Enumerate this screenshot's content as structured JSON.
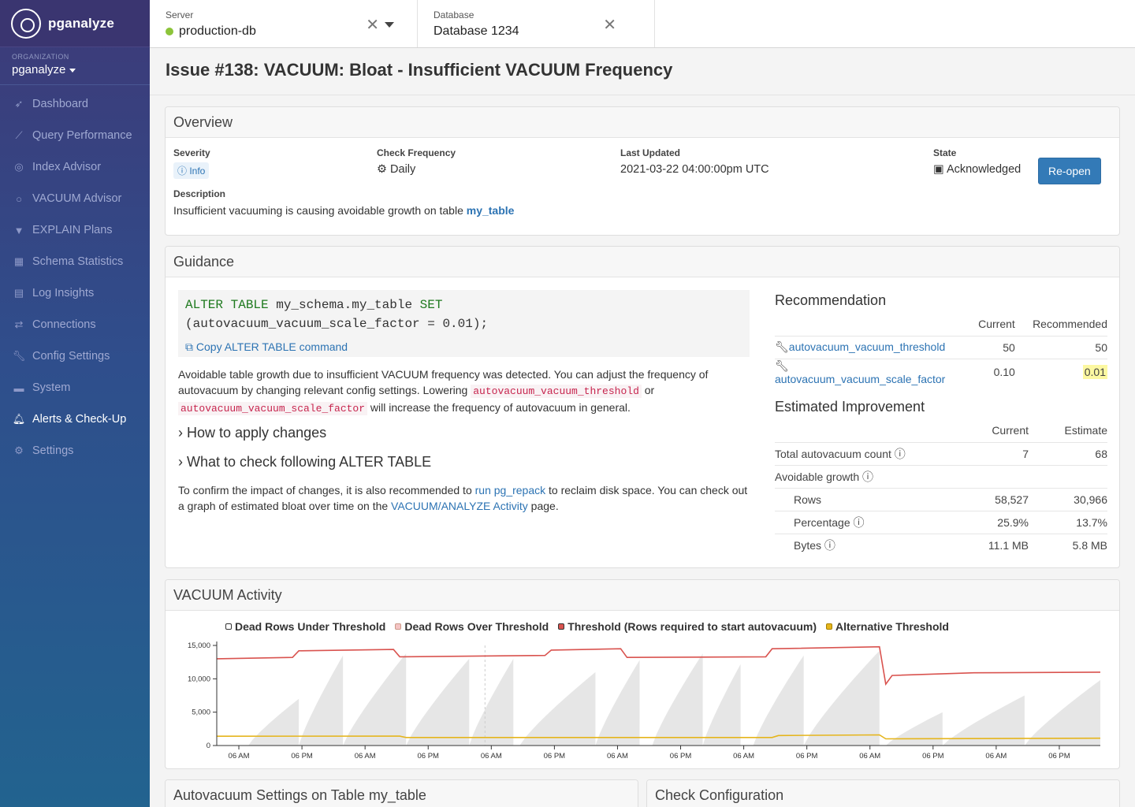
{
  "app": {
    "name": "pganalyze"
  },
  "organization": {
    "label": "ORGANIZATION",
    "name": "pganalyze"
  },
  "nav": [
    {
      "label": "Dashboard",
      "icon": "rocket-icon"
    },
    {
      "label": "Query Performance",
      "icon": "line-chart-icon"
    },
    {
      "label": "Index Advisor",
      "icon": "target-icon"
    },
    {
      "label": "VACUUM Advisor",
      "icon": "circle-icon"
    },
    {
      "label": "EXPLAIN Plans",
      "icon": "filter-icon"
    },
    {
      "label": "Schema Statistics",
      "icon": "table-icon"
    },
    {
      "label": "Log Insights",
      "icon": "inbox-icon"
    },
    {
      "label": "Connections",
      "icon": "exchange-icon"
    },
    {
      "label": "Config Settings",
      "icon": "wrench-icon"
    },
    {
      "label": "System",
      "icon": "hdd-icon"
    },
    {
      "label": "Alerts & Check-Up",
      "icon": "bell-icon",
      "active": true
    },
    {
      "label": "Settings",
      "icon": "gear-icon"
    }
  ],
  "topbar": {
    "server": {
      "label": "Server",
      "value": "production-db",
      "status_color": "#8cc43a"
    },
    "database": {
      "label": "Database",
      "value": "Database 1234"
    }
  },
  "page_title": "Issue #138: VACUUM: Bloat - Insufficient VACUUM Frequency",
  "overview": {
    "title": "Overview",
    "severity": {
      "label": "Severity",
      "value": "Info"
    },
    "check_frequency": {
      "label": "Check Frequency",
      "value": "Daily"
    },
    "last_updated": {
      "label": "Last Updated",
      "value": "2021-03-22 04:00:00pm UTC"
    },
    "state": {
      "label": "State",
      "value": "Acknowledged"
    },
    "reopen_button": "Re-open",
    "description": {
      "label": "Description",
      "text": "Insufficient vacuuming is causing avoidable growth on table",
      "table": "my_table"
    }
  },
  "guidance": {
    "title": "Guidance",
    "code": {
      "kw1": "ALTER TABLE",
      "table": " my_schema.my_table ",
      "kw2": "SET",
      "line2": "(autovacuum_vacuum_scale_factor = 0.01);"
    },
    "copy_label": "Copy ALTER TABLE command",
    "para1": {
      "t1": "Avoidable table growth due to insufficient VACUUM frequency was detected. You can adjust the frequency of autovacuum by changing relevant config settings. Lowering ",
      "c1": "autovacuum_vacuum_threshold",
      "t2": " or ",
      "c2": "autovacuum_vacuum_scale_factor",
      "t3": " will increase the frequency of autovacuum in general."
    },
    "expander1": "How to apply changes",
    "expander2": "What to check following ALTER TABLE",
    "para2": {
      "t1": "To confirm the impact of changes, it is also recommended to ",
      "l1": "run pg_repack",
      "t2": " to reclaim disk space. You can check out a graph of estimated bloat over time on the ",
      "l2": "VACUUM/ANALYZE Activity",
      "t3": " page."
    },
    "recommendation": {
      "title": "Recommendation",
      "col_current": "Current",
      "col_recommended": "Recommended",
      "rows": [
        {
          "setting": "autovacuum_vacuum_threshold",
          "current": "50",
          "recommended": "50"
        },
        {
          "setting": "autovacuum_vacuum_scale_factor",
          "current": "0.10",
          "recommended": "0.01"
        }
      ]
    },
    "improvement": {
      "title": "Estimated Improvement",
      "col_current": "Current",
      "col_estimate": "Estimate",
      "total": {
        "label": "Total autovacuum count",
        "current": "7",
        "estimate": "68"
      },
      "avoidable": {
        "label": "Avoidable growth"
      },
      "rows": [
        {
          "label": "Rows",
          "current": "58,527",
          "estimate": "30,966"
        },
        {
          "label": "Percentage",
          "current": "25.9%",
          "estimate": "13.7%"
        },
        {
          "label": "Bytes",
          "current": "11.1 MB",
          "estimate": "5.8 MB"
        }
      ]
    }
  },
  "vacuum_activity": {
    "title": "VACUUM Activity",
    "legend": [
      {
        "name": "Dead Rows Under Threshold",
        "color": "#ffffff"
      },
      {
        "name": "Dead Rows Over Threshold",
        "color": "#f4c4c4"
      },
      {
        "name": "Threshold (Rows required to start autovacuum)",
        "color": "#d9534f"
      },
      {
        "name": "Alternative Threshold",
        "color": "#e5b51c"
      }
    ]
  },
  "chart_data": {
    "type": "area",
    "y_ticks": [
      "15,000",
      "10,000",
      "5,000",
      "0"
    ],
    "ylim": [
      0,
      15000
    ],
    "x_ticks": [
      "06 AM",
      "06 PM",
      "06 AM",
      "06 PM",
      "06 AM",
      "06 PM",
      "06 AM",
      "06 PM",
      "06 AM",
      "06 PM",
      "06 AM",
      "06 PM",
      "06 AM",
      "06 PM"
    ],
    "threshold_series": [
      {
        "x": 0,
        "y": 13000
      },
      {
        "x": 1.2,
        "y": 13200
      },
      {
        "x": 1.3,
        "y": 14200
      },
      {
        "x": 2.8,
        "y": 14400
      },
      {
        "x": 2.9,
        "y": 13300
      },
      {
        "x": 5.2,
        "y": 13500
      },
      {
        "x": 5.3,
        "y": 14300
      },
      {
        "x": 6.4,
        "y": 14500
      },
      {
        "x": 6.5,
        "y": 13200
      },
      {
        "x": 8.7,
        "y": 13300
      },
      {
        "x": 8.8,
        "y": 14500
      },
      {
        "x": 10.5,
        "y": 14800
      },
      {
        "x": 10.6,
        "y": 9200
      },
      {
        "x": 10.7,
        "y": 10500
      },
      {
        "x": 12,
        "y": 10900
      },
      {
        "x": 14,
        "y": 11000
      }
    ],
    "alternative_threshold_series": [
      {
        "x": 0,
        "y": 1400
      },
      {
        "x": 2.9,
        "y": 1400
      },
      {
        "x": 3.0,
        "y": 1200
      },
      {
        "x": 8.8,
        "y": 1200
      },
      {
        "x": 8.9,
        "y": 1500
      },
      {
        "x": 10.5,
        "y": 1600
      },
      {
        "x": 10.6,
        "y": 1000
      },
      {
        "x": 14,
        "y": 1100
      }
    ],
    "dead_rows_cycles": [
      {
        "start": 0.5,
        "end": 1.3,
        "peak": 7000
      },
      {
        "start": 1.3,
        "end": 2.0,
        "peak": 13500
      },
      {
        "start": 2.0,
        "end": 3.0,
        "peak": 13800
      },
      {
        "start": 3.0,
        "end": 4.0,
        "peak": 13000
      },
      {
        "start": 4.0,
        "end": 4.7,
        "peak": 13000
      },
      {
        "start": 4.8,
        "end": 6.0,
        "peak": 11000
      },
      {
        "start": 6.0,
        "end": 6.7,
        "peak": 12800
      },
      {
        "start": 6.9,
        "end": 7.7,
        "peak": 13800
      },
      {
        "start": 7.7,
        "end": 8.3,
        "peak": 12200
      },
      {
        "start": 8.5,
        "end": 9.3,
        "peak": 13500
      },
      {
        "start": 9.3,
        "end": 10.5,
        "peak": 14200
      },
      {
        "start": 10.6,
        "end": 11.5,
        "peak": 5000
      },
      {
        "start": 11.5,
        "end": 12.8,
        "peak": 7500
      },
      {
        "start": 12.8,
        "end": 14,
        "peak": 9800
      }
    ]
  },
  "autovacuum_settings": {
    "title": "Autovacuum Settings on Table my_table"
  },
  "check_configuration": {
    "title": "Check Configuration"
  }
}
